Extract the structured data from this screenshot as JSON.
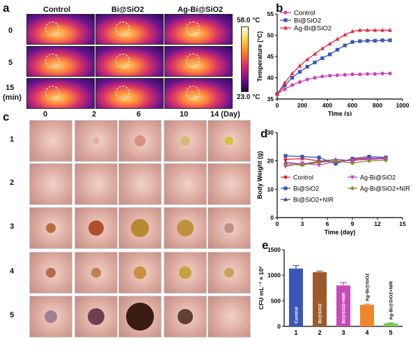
{
  "panels": {
    "a": {
      "label": "a",
      "columns": [
        "Control",
        "Bi@SiO2",
        "Ag-Bi@SiO2"
      ],
      "rows": [
        "0",
        "5",
        "15"
      ],
      "row_unit": "(min)",
      "colorbar": {
        "max": "58.0 °C",
        "min": "23.0 °C"
      }
    },
    "b": {
      "label": "b"
    },
    "c": {
      "label": "c",
      "days": [
        "0",
        "2",
        "6",
        "10",
        "14 (Day)"
      ],
      "groups": [
        "1",
        "2",
        "3",
        "4",
        "5"
      ]
    },
    "d": {
      "label": "d"
    },
    "e": {
      "label": "e"
    }
  },
  "chart_data": [
    {
      "id": "b",
      "type": "line",
      "xlabel": "Time (s)",
      "ylabel": "Temperature (°C)",
      "xlim": [
        0,
        1000
      ],
      "ylim": [
        35,
        55
      ],
      "xticks": [
        0,
        200,
        400,
        600,
        800,
        1000
      ],
      "yticks": [
        35,
        40,
        45,
        50,
        55
      ],
      "legend": "top-left",
      "x": [
        0,
        60,
        120,
        180,
        240,
        300,
        360,
        420,
        480,
        540,
        600,
        660,
        720,
        780,
        840,
        900
      ],
      "series": [
        {
          "name": "Control",
          "color": "#d23fb8",
          "marker": "circle",
          "values": [
            36.2,
            37.3,
            38.3,
            39.0,
            39.6,
            40.0,
            40.3,
            40.5,
            40.6,
            40.7,
            40.8,
            40.8,
            40.9,
            40.9,
            41.0,
            41.0
          ]
        },
        {
          "name": "Bi@SiO2",
          "color": "#3a55b5",
          "marker": "square",
          "values": [
            36.2,
            38.2,
            40.0,
            41.4,
            42.6,
            43.6,
            44.6,
            45.5,
            46.6,
            47.6,
            48.4,
            48.6,
            48.7,
            48.7,
            48.8,
            48.8
          ]
        },
        {
          "name": "Ag-Bi@SiO2",
          "color": "#e8283b",
          "marker": "triangle",
          "values": [
            36.2,
            38.8,
            41.0,
            42.8,
            44.3,
            45.6,
            46.9,
            48.0,
            49.1,
            50.1,
            50.9,
            51.2,
            51.2,
            51.2,
            51.2,
            51.2
          ]
        }
      ]
    },
    {
      "id": "d",
      "type": "line",
      "xlabel": "Time (day)",
      "ylabel": "Body Weight (g)",
      "xlim": [
        0,
        15
      ],
      "ylim": [
        0,
        30
      ],
      "xticks": [
        0,
        3,
        6,
        9,
        12,
        15
      ],
      "yticks": [
        0,
        10,
        20,
        30
      ],
      "legend": "bottom",
      "x": [
        1,
        3,
        5,
        7,
        9,
        11,
        13
      ],
      "series": [
        {
          "name": "Control",
          "color": "#e8283b",
          "marker": "circle",
          "values": [
            20.5,
            20.8,
            20.0,
            19.5,
            20.5,
            21.0,
            20.6
          ]
        },
        {
          "name": "Bi@SiO2",
          "color": "#3a55b5",
          "marker": "square",
          "values": [
            21.8,
            21.5,
            21.2,
            19.0,
            20.8,
            21.5,
            21.2
          ]
        },
        {
          "name": "Bi@SiO2+NIR",
          "color": "#6a2fa0",
          "marker": "triangle",
          "values": [
            19.5,
            18.8,
            19.8,
            20.5,
            20.0,
            20.8,
            21.0
          ]
        },
        {
          "name": "Ag-Bi@SiO2",
          "color": "#d23fb8",
          "marker": "triangle-down",
          "values": [
            18.0,
            19.2,
            18.5,
            19.8,
            20.2,
            20.5,
            20.8
          ]
        },
        {
          "name": "Ag-Bi@SiO2+NIR",
          "color": "#8a8a20",
          "marker": "diamond",
          "values": [
            18.8,
            18.5,
            19.5,
            20.0,
            19.2,
            20.0,
            20.2
          ]
        }
      ]
    },
    {
      "id": "e",
      "type": "bar",
      "ylabel": "CFU mL⁻¹ × 10²",
      "ylim": [
        0,
        1500
      ],
      "yticks": [
        0,
        500,
        1000,
        1500
      ],
      "categories": [
        "1",
        "2",
        "3",
        "4",
        "5"
      ],
      "values": [
        1130,
        1060,
        800,
        420,
        60
      ],
      "errors": [
        60,
        20,
        55,
        15,
        10
      ],
      "bar_labels": [
        "Control",
        "Bi@SiO2",
        "Bi@SiO2+NIR",
        "Ag-Bi@SiO2",
        "Ag-Bi@SiO2+NIR"
      ],
      "colors": [
        "#3a57b8",
        "#9a5a2a",
        "#c64bb8",
        "#f0862a",
        "#7ec850"
      ]
    }
  ]
}
